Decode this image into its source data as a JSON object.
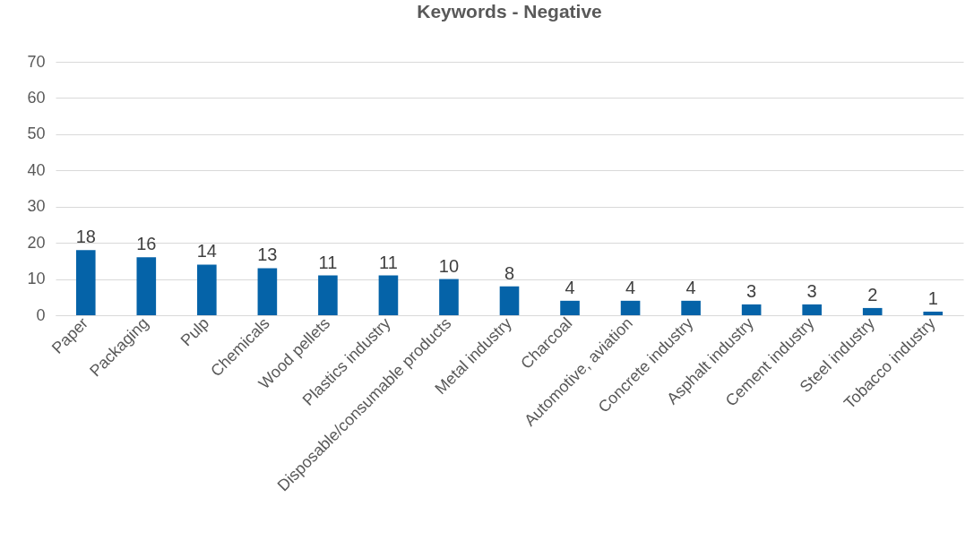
{
  "chart_data": {
    "type": "bar",
    "title": "Keywords - Negative",
    "categories": [
      "Paper",
      "Packaging",
      "Pulp",
      "Chemicals",
      "Wood pellets",
      "Plastics industry",
      "Disposable/consumable products",
      "Metal industry",
      "Charcoal",
      "Automotive, aviation",
      "Concrete industry",
      "Asphalt industry",
      "Cement industry",
      "Steel industry",
      "Tobacco industry"
    ],
    "values": [
      18,
      16,
      14,
      13,
      11,
      11,
      10,
      8,
      4,
      4,
      4,
      3,
      3,
      2,
      1
    ],
    "color": "#0563a8",
    "ylim": [
      0,
      70
    ],
    "yticks": [
      0,
      10,
      20,
      30,
      40,
      50,
      60,
      70
    ],
    "grid": "y",
    "data_labels": true
  }
}
